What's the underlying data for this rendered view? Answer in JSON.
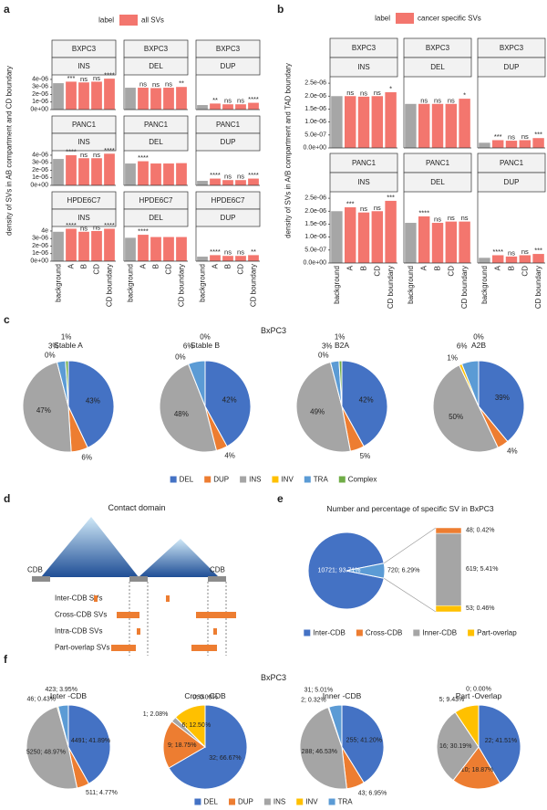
{
  "panel_labels": [
    "a",
    "b",
    "c",
    "d",
    "e",
    "f"
  ],
  "chart_data": [
    {
      "type": "bar",
      "legend_title": "label",
      "legend_label": "all SVs",
      "ylabel": "density of SVs in AB compartment and CD boundary",
      "categories": [
        "background",
        "A",
        "B",
        "CD",
        "CD boundary"
      ],
      "colors": [
        "#a6a6a6",
        "#f3766e",
        "#f3766e",
        "#f3766e",
        "#f3766e"
      ],
      "ylim": [
        0,
        4.6e-06
      ],
      "rows": [
        {
          "name": "BXPC3",
          "yticks": [
            {
              "value": 0,
              "label": "0e+00"
            },
            {
              "value": 1e-06,
              "label": "1e-06"
            },
            {
              "value": 2e-06,
              "label": "2e-06"
            },
            {
              "value": 3e-06,
              "label": "3e-06"
            },
            {
              "value": 4e-06,
              "label": "4e-06"
            }
          ],
          "panels": [
            {
              "name": "INS",
              "values": [
                3.5e-06,
                3.7e-06,
                3.6e-06,
                3.7e-06,
                4.1e-06
              ],
              "annotations": [
                null,
                "***",
                "ns",
                "ns",
                "****"
              ]
            },
            {
              "name": "DEL",
              "values": [
                2.9e-06,
                2.9e-06,
                2.85e-06,
                2.9e-06,
                3e-06
              ],
              "annotations": [
                null,
                "ns",
                "ns",
                "ns",
                "**"
              ]
            },
            {
              "name": "DUP",
              "values": [
                6e-07,
                8e-07,
                7e-07,
                7e-07,
                9e-07
              ],
              "annotations": [
                null,
                "**",
                "ns",
                "ns",
                "****"
              ]
            }
          ]
        },
        {
          "name": "PANC1",
          "yticks": [
            {
              "value": 0,
              "label": "0e+00"
            },
            {
              "value": 1e-06,
              "label": "1e-06"
            },
            {
              "value": 2e-06,
              "label": "2e-06"
            },
            {
              "value": 3e-06,
              "label": "3e-06"
            },
            {
              "value": 4e-06,
              "label": "4e-06"
            }
          ],
          "panels": [
            {
              "name": "INS",
              "values": [
                3.5e-06,
                4e-06,
                3.6e-06,
                3.6e-06,
                4.2e-06
              ],
              "annotations": [
                null,
                "****",
                "ns",
                "ns",
                "****"
              ]
            },
            {
              "name": "DEL",
              "values": [
                2.9e-06,
                3.2e-06,
                2.9e-06,
                2.9e-06,
                2.95e-06
              ],
              "annotations": [
                null,
                "****",
                null,
                null,
                null
              ]
            },
            {
              "name": "DUP",
              "values": [
                6e-07,
                9e-07,
                7e-07,
                7e-07,
                9e-07
              ],
              "annotations": [
                null,
                "****",
                "ns",
                "ns",
                "****"
              ]
            }
          ]
        },
        {
          "name": "HPDE6C7",
          "yticks": [
            {
              "value": 0,
              "label": "0e+00"
            },
            {
              "value": 1e-06,
              "label": "1e-06"
            },
            {
              "value": 2e-06,
              "label": "2e-06"
            },
            {
              "value": 3e-06,
              "label": "3e-06"
            },
            {
              "value": 4e-06,
              "label": "4e"
            }
          ],
          "panels": [
            {
              "name": "INS",
              "values": [
                3.9e-06,
                4.3e-06,
                3.9e-06,
                4e-06,
                4.3e-06
              ],
              "annotations": [
                null,
                "****",
                "ns",
                "ns",
                "****"
              ]
            },
            {
              "name": "DEL",
              "values": [
                3.1e-06,
                3.5e-06,
                3.2e-06,
                3.2e-06,
                3.2e-06
              ],
              "annotations": [
                null,
                "****",
                null,
                null,
                null
              ]
            },
            {
              "name": "DUP",
              "values": [
                6e-07,
                8e-07,
                7e-07,
                7e-07,
                8e-07
              ],
              "annotations": [
                null,
                "****",
                "ns",
                "ns",
                "**"
              ]
            }
          ]
        }
      ]
    },
    {
      "type": "bar",
      "legend_title": "label",
      "legend_label": "cancer specific SVs",
      "ylabel": "density of SVs in A/B compartment and TAD boundary",
      "categories": [
        "background",
        "A",
        "B",
        "CD",
        "CD boundary"
      ],
      "colors": [
        "#a6a6a6",
        "#f3766e",
        "#f3766e",
        "#f3766e",
        "#f3766e"
      ],
      "ylim": [
        0,
        2.75e-06
      ],
      "rows": [
        {
          "name": "BXPC3",
          "yticks": [
            {
              "value": 0,
              "label": "0.0e+00"
            },
            {
              "value": 5e-07,
              "label": "5.0e-07"
            },
            {
              "value": 1e-06,
              "label": "1.0e-06"
            },
            {
              "value": 1.5e-06,
              "label": "1.5e-06"
            },
            {
              "value": 2e-06,
              "label": "2.0e-06"
            },
            {
              "value": 2.5e-06,
              "label": "2.5e-06"
            }
          ],
          "panels": [
            {
              "name": "INS",
              "values": [
                2e-06,
                2e-06,
                1.98e-06,
                2e-06,
                2.15e-06
              ],
              "annotations": [
                null,
                "ns",
                "ns",
                "ns",
                "*"
              ]
            },
            {
              "name": "DEL",
              "values": [
                1.7e-06,
                1.7e-06,
                1.7e-06,
                1.7e-06,
                1.9e-06
              ],
              "annotations": [
                null,
                "ns",
                "ns",
                "ns",
                "*"
              ]
            },
            {
              "name": "DUP",
              "values": [
                2e-07,
                3e-07,
                2.8e-07,
                3e-07,
                3.8e-07
              ],
              "annotations": [
                null,
                "***",
                "ns",
                "ns",
                "***"
              ]
            }
          ]
        },
        {
          "name": "PANC1",
          "yticks": [
            {
              "value": 0,
              "label": "0.0e+00"
            },
            {
              "value": 5e-07,
              "label": "5.0e-07"
            },
            {
              "value": 1e-06,
              "label": "1.0e-06"
            },
            {
              "value": 1.5e-06,
              "label": "1.5e-06"
            },
            {
              "value": 2e-06,
              "label": "2.0e-06"
            },
            {
              "value": 2.5e-06,
              "label": "2.5e-06"
            }
          ],
          "panels": [
            {
              "name": "INS",
              "values": [
                2e-06,
                2.15e-06,
                1.95e-06,
                2e-06,
                2.4e-06
              ],
              "annotations": [
                null,
                "***",
                "ns",
                "ns",
                "***"
              ]
            },
            {
              "name": "DEL",
              "values": [
                1.55e-06,
                1.8e-06,
                1.55e-06,
                1.6e-06,
                1.6e-06
              ],
              "annotations": [
                null,
                "****",
                "ns",
                "ns",
                "ns"
              ]
            },
            {
              "name": "DUP",
              "values": [
                2e-07,
                3e-07,
                2.5e-07,
                3e-07,
                3.5e-07
              ],
              "annotations": [
                null,
                "****",
                "ns",
                "ns",
                "***"
              ]
            }
          ]
        }
      ]
    },
    {
      "type": "pie",
      "title": "BxPC3",
      "categories": [
        "DEL",
        "DUP",
        "INS",
        "INV",
        "TRA",
        "Complex"
      ],
      "colors": [
        "#4472c4",
        "#ed7d31",
        "#a5a5a5",
        "#ffc000",
        "#5b9bd5",
        "#70ad47"
      ],
      "pies": [
        {
          "name": "Stable A",
          "values": [
            43,
            6,
            47,
            0,
            3,
            1
          ],
          "value_labels": [
            "43%",
            "6%",
            "47%",
            "0%",
            "3%",
            "1%"
          ]
        },
        {
          "name": "Stable B",
          "values": [
            42,
            4,
            48,
            0,
            6,
            0
          ],
          "value_labels": [
            "42%",
            "4%",
            "48%",
            "0%",
            "6%",
            "0%"
          ]
        },
        {
          "name": "B2A",
          "values": [
            42,
            5,
            49,
            0,
            3,
            1
          ],
          "value_labels": [
            "42%",
            "5%",
            "49%",
            "0%",
            "3%",
            "1%"
          ]
        },
        {
          "name": "A2B",
          "values": [
            39,
            4,
            50,
            1,
            6,
            0
          ],
          "value_labels": [
            "39%",
            "4%",
            "50%",
            "1%",
            "6%",
            "0%"
          ]
        }
      ]
    },
    {
      "type": "bar_of_pie",
      "title": "Number and percentage of specific SV in BxPC3",
      "categories": [
        "Inter-CDB",
        "Cross-CDB",
        "Inner-CDB",
        "Part-overlap"
      ],
      "colors": [
        "#4472c4",
        "#ed7d31",
        "#a5a5a5",
        "#ffc000"
      ],
      "values": [
        10721,
        48,
        619,
        53
      ],
      "value_labels": [
        "10721; 93.71%",
        "48; 0.42%",
        "619; 5.41%",
        "53; 0.46%"
      ],
      "rest": {
        "value": 720,
        "label": "720; 6.29%"
      },
      "rest_color": "#5b9bd5"
    },
    {
      "type": "pie",
      "title": "BxPC3",
      "categories": [
        "DEL",
        "DUP",
        "INS",
        "INV",
        "TRA"
      ],
      "colors": [
        "#4472c4",
        "#ed7d31",
        "#a5a5a5",
        "#ffc000",
        "#5b9bd5"
      ],
      "pies": [
        {
          "name": "Inter -CDB",
          "values": [
            4491,
            511,
            5250,
            46,
            423
          ],
          "value_labels": [
            "4491; 41.89%",
            "511; 4.77%",
            "5250; 48.97%",
            "46; 0.43%",
            "423; 3.95%"
          ]
        },
        {
          "name": "Cross -CDB",
          "values": [
            32,
            9,
            1,
            6,
            0
          ],
          "value_labels": [
            "32; 66.67%",
            "9; 18.75%",
            "1; 2.08%",
            "6; 12.50%",
            "0; 0.00%"
          ]
        },
        {
          "name": "Inner -CDB",
          "values": [
            255,
            43,
            288,
            2,
            31
          ],
          "value_labels": [
            "255; 41.20%",
            "43; 6.95%",
            "288; 46.53%",
            "2; 0.32%",
            "31; 5.01%"
          ]
        },
        {
          "name": "Part -Overlap",
          "values": [
            22,
            10,
            16,
            5,
            0
          ],
          "value_labels": [
            "22; 41.51%",
            "10; 18.87%",
            "16; 30.19%",
            "5; 9.43%",
            "0; 0.00%"
          ]
        }
      ]
    }
  ],
  "diagram": {
    "title": "Contact domain",
    "boundary_labels": [
      "CDB",
      "CDB"
    ],
    "sv_types": [
      "Inter-CDB SVs",
      "Cross-CDB SVs",
      "Intra-CDB SVs",
      "Part-overlap SVs"
    ]
  }
}
